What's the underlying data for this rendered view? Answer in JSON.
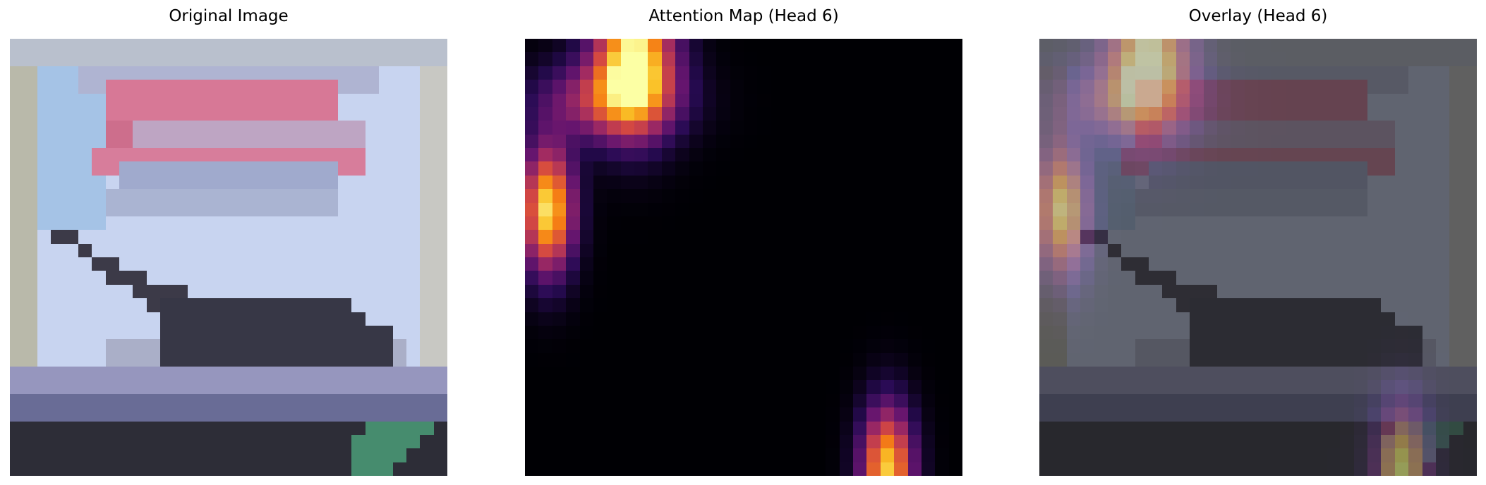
{
  "panels": [
    {
      "title": "Original Image"
    },
    {
      "title": "Attention Map (Head 6)"
    },
    {
      "title": "Overlay (Head 6)"
    }
  ],
  "attention": {
    "colormap": "inferno",
    "head": 6,
    "hotspots": [
      {
        "label": "top-left-vertical",
        "peak": 1.0
      },
      {
        "label": "left-edge",
        "peak": 0.92
      },
      {
        "label": "bottom-right",
        "peak": 0.85
      }
    ]
  }
}
